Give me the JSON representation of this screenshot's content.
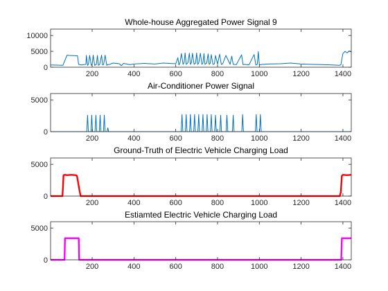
{
  "chart_data": [
    {
      "type": "line",
      "title": "Whole-house Aggregated Power Signal 9",
      "xlabel": "",
      "ylabel": "",
      "xlim": [
        1,
        1440
      ],
      "ylim": [
        0,
        12000
      ],
      "xticks": [
        200,
        400,
        600,
        800,
        1000,
        1200,
        1400
      ],
      "yticks": [
        0,
        5000,
        10000
      ],
      "color": "#0072BD",
      "series": [
        {
          "x": [
            1,
            60,
            80,
            90,
            130,
            135,
            150,
            160,
            170,
            172,
            178,
            182,
            188,
            196,
            200,
            205,
            212,
            220,
            225,
            230,
            236,
            245,
            250,
            255,
            262,
            270,
            275,
            280,
            300,
            330,
            340,
            350,
            380,
            400,
            420,
            450,
            500,
            540,
            600,
            610,
            615,
            620,
            627,
            635,
            640,
            645,
            650,
            658,
            665,
            670,
            675,
            680,
            688,
            695,
            700,
            705,
            710,
            718,
            725,
            730,
            735,
            740,
            748,
            755,
            760,
            765,
            770,
            778,
            785,
            790,
            800,
            810,
            818,
            825,
            840,
            860,
            868,
            875,
            890,
            915,
            922,
            930,
            950,
            975,
            983,
            990,
            995,
            1000,
            1008,
            1015,
            1040,
            1100,
            1150,
            1200,
            1250,
            1300,
            1350,
            1380,
            1390,
            1400,
            1410,
            1420,
            1430,
            1440
          ],
          "y": [
            700,
            600,
            3800,
            3700,
            3600,
            900,
            700,
            800,
            900,
            3700,
            600,
            900,
            3700,
            600,
            800,
            3800,
            600,
            900,
            3700,
            600,
            900,
            3800,
            700,
            900,
            3800,
            600,
            900,
            800,
            1300,
            1100,
            500,
            1200,
            800,
            1000,
            1100,
            1200,
            1000,
            1300,
            1100,
            3000,
            700,
            1300,
            4300,
            900,
            1400,
            4500,
            900,
            1400,
            4400,
            900,
            1400,
            4400,
            900,
            1300,
            4500,
            900,
            1300,
            4400,
            900,
            1300,
            4300,
            900,
            1300,
            4200,
            900,
            1200,
            4000,
            900,
            1100,
            3700,
            1000,
            4100,
            900,
            1100,
            3700,
            900,
            3500,
            900,
            800,
            3900,
            800,
            900,
            700,
            4000,
            700,
            900,
            4900,
            700,
            800,
            900,
            1000,
            1100,
            1300,
            1000,
            900,
            800,
            700,
            600,
            700,
            4300,
            5000,
            4500,
            5100,
            4800
          ]
        }
      ]
    },
    {
      "type": "line",
      "title": "Air-Conditioner Power Signal",
      "xlabel": "",
      "ylabel": "",
      "xlim": [
        1,
        1440
      ],
      "ylim": [
        0,
        6000
      ],
      "xticks": [
        200,
        400,
        600,
        800,
        1000,
        1200,
        1400
      ],
      "yticks": [
        0,
        5000
      ],
      "color": "#0072BD",
      "spikes": {
        "x": [
          178,
          198,
          218,
          238,
          258,
          275,
          630,
          650,
          670,
          690,
          710,
          730,
          750,
          770,
          790,
          815,
          845,
          875,
          920,
          985,
          1005
        ],
        "y": [
          2600,
          2600,
          2600,
          2600,
          2600,
          600,
          2700,
          2700,
          2700,
          2700,
          2700,
          2700,
          2700,
          2700,
          2600,
          2600,
          2600,
          2600,
          2700,
          2700,
          2700
        ]
      }
    },
    {
      "type": "line",
      "title": "Ground-Truth of Electric Vehicle Charging Load",
      "xlabel": "",
      "ylabel": "",
      "xlim": [
        1,
        1440
      ],
      "ylim": [
        0,
        6000
      ],
      "xticks": [
        200,
        400,
        600,
        800,
        1000,
        1200,
        1400
      ],
      "yticks": [
        0,
        5000
      ],
      "color": "#FF0000",
      "series": [
        {
          "x": [
            1,
            58,
            63,
            70,
            80,
            100,
            120,
            125,
            128,
            135,
            140,
            145,
            150,
            1385,
            1390,
            1395,
            1400,
            1420,
            1440
          ],
          "y": [
            0,
            0,
            3300,
            3350,
            3300,
            3350,
            3300,
            3250,
            3100,
            1700,
            800,
            0,
            0,
            0,
            600,
            3200,
            3350,
            3300,
            3350
          ]
        }
      ]
    },
    {
      "type": "line",
      "title": "Estiamted Electric Vehicle Charging Load",
      "xlabel": "",
      "ylabel": "",
      "xlim": [
        1,
        1440
      ],
      "ylim": [
        0,
        6000
      ],
      "xticks": [
        200,
        400,
        600,
        800,
        1000,
        1200,
        1400
      ],
      "yticks": [
        0,
        5000
      ],
      "color": "#FF00FF",
      "series": [
        {
          "x": [
            1,
            68,
            70,
            136,
            138,
            1392,
            1395,
            1440
          ],
          "y": [
            0,
            0,
            3400,
            3400,
            0,
            0,
            3400,
            3400
          ]
        }
      ]
    }
  ]
}
